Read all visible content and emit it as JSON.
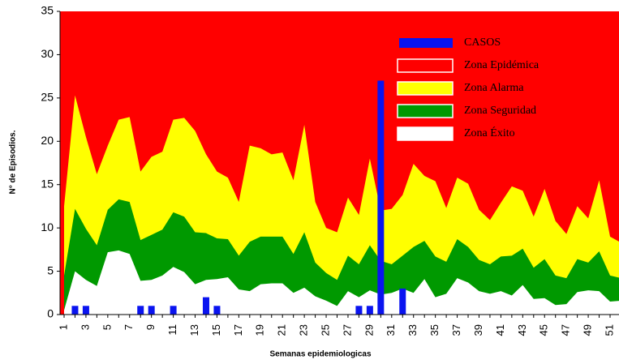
{
  "chart_data": {
    "type": "endemic-channel",
    "ylabel": "N° de Episodios.",
    "xlabel": "Semanas epidemiologicas",
    "categories": [
      "1",
      null,
      "3",
      null,
      "5",
      null,
      "7",
      null,
      "9",
      null,
      "11",
      null,
      "13",
      null,
      "15",
      null,
      "17",
      null,
      "19",
      null,
      "21",
      null,
      "23",
      null,
      "25",
      null,
      "27",
      null,
      "29",
      null,
      "31",
      null,
      "33",
      null,
      "35",
      null,
      "37",
      null,
      "39",
      null,
      "41",
      null,
      "43",
      null,
      "45",
      null,
      "47",
      null,
      "49",
      null,
      "51",
      null
    ],
    "ylim": [
      0,
      35
    ],
    "yticks": [
      0,
      5,
      10,
      15,
      20,
      25,
      30,
      35
    ],
    "series": [
      {
        "name": "CASOS",
        "color": "#0a14f0",
        "kind": "bar",
        "values": [
          0,
          1,
          1,
          0,
          0,
          0,
          0,
          1,
          1,
          0,
          1,
          0,
          0,
          2,
          1,
          0,
          0,
          0,
          0,
          0,
          0,
          0,
          0,
          0,
          0,
          0,
          0,
          1,
          1,
          27,
          0,
          3,
          0,
          0,
          0,
          0,
          0,
          0,
          0,
          0,
          0,
          0,
          0,
          0,
          0,
          0,
          0,
          0,
          0,
          0,
          0,
          0
        ]
      },
      {
        "name": "Zona Epidémica",
        "color": "#ff0000",
        "kind": "background"
      },
      {
        "name": "Zona Alarma",
        "color": "#ffff00",
        "kind": "area",
        "values": [
          12.5,
          25.3,
          20.5,
          16.2,
          19.5,
          22.5,
          22.8,
          16.5,
          18.2,
          18.8,
          22.5,
          22.7,
          21.2,
          18.5,
          16.5,
          15.8,
          13,
          19.5,
          19.2,
          18.5,
          18.7,
          15.5,
          21.9,
          13,
          10,
          9.5,
          13.5,
          11.5,
          18,
          12,
          12.2,
          13.8,
          17.4,
          16,
          15.4,
          12.3,
          15.8,
          15.1,
          12.1,
          10.9,
          12.9,
          14.8,
          14.3,
          11.3,
          14.5,
          10.8,
          9.3,
          12.5,
          11.1,
          15.5,
          9,
          8.3
        ]
      },
      {
        "name": "Zona Seguridad",
        "color": "#009900",
        "kind": "area",
        "values": [
          4.5,
          12.2,
          9.9,
          8,
          12.1,
          13.3,
          13,
          8.6,
          9.2,
          9.8,
          11.8,
          11.3,
          9.5,
          9.4,
          8.8,
          8.7,
          6.8,
          8.4,
          9,
          9,
          9,
          7,
          9.5,
          6,
          4.8,
          4,
          6.8,
          5.8,
          8,
          6.2,
          5.8,
          6.8,
          7.8,
          8.5,
          6.7,
          6.1,
          8.7,
          7.8,
          6.3,
          5.8,
          6.7,
          6.8,
          7.6,
          5.4,
          6.4,
          4.5,
          4.2,
          6.4,
          6,
          7.3,
          4.5,
          4.2
        ]
      },
      {
        "name": "Zona Éxito",
        "color": "#ffffff",
        "kind": "area",
        "values": [
          0.5,
          5,
          4,
          3.3,
          7.2,
          7.4,
          7,
          3.9,
          4,
          4.5,
          5.5,
          4.9,
          3.5,
          4,
          4.1,
          4.3,
          2.9,
          2.7,
          3.5,
          3.6,
          3.6,
          2.5,
          3.1,
          2.1,
          1.6,
          1,
          2.7,
          2,
          2.8,
          2.3,
          2.5,
          3,
          2.5,
          4.1,
          2,
          2.4,
          4.2,
          3.7,
          2.7,
          2.4,
          2.7,
          2.2,
          3.4,
          1.8,
          1.9,
          1.1,
          1.2,
          2.6,
          2.8,
          2.7,
          1.5,
          1.6
        ]
      }
    ]
  }
}
